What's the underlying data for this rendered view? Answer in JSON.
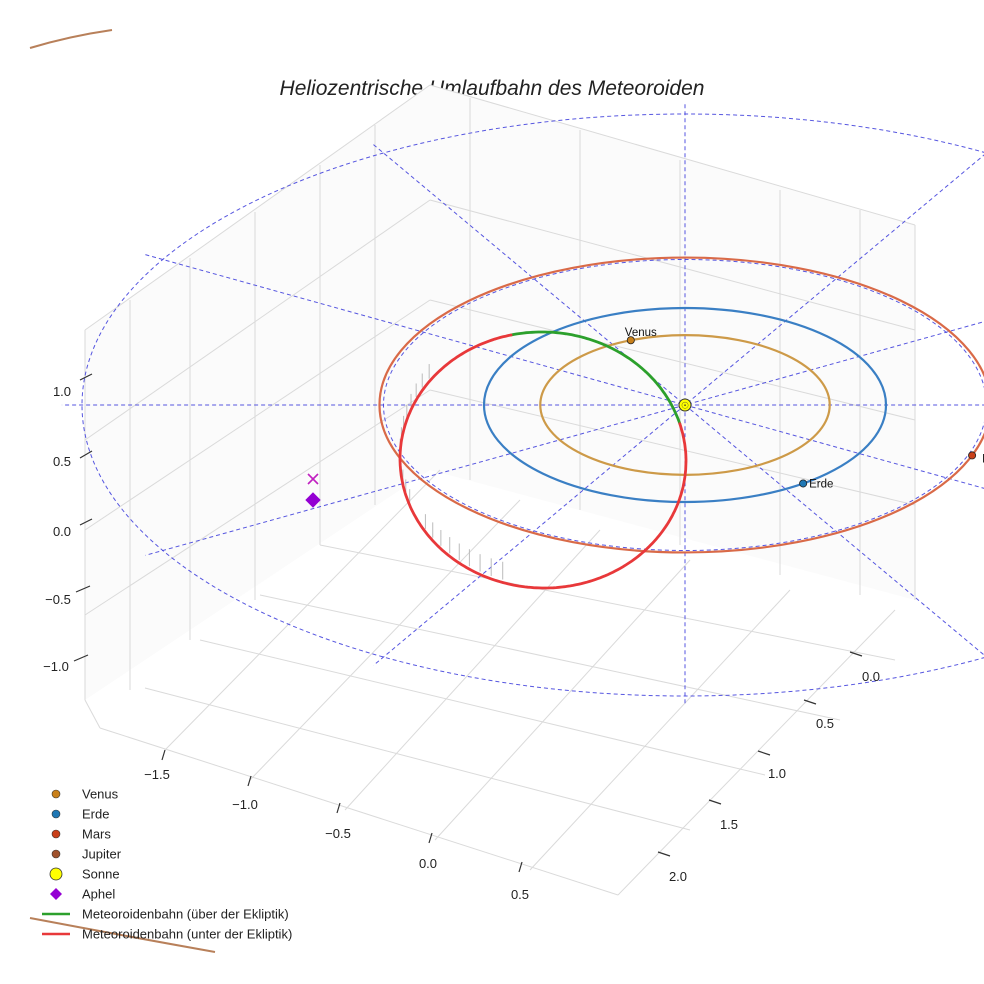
{
  "chart_data": {
    "type": "line",
    "projection": "3d",
    "title": "Heliozentrische Umlaufbahn des Meteoroiden",
    "xlabel": "",
    "ylabel": "",
    "zlabel": "",
    "grid": true,
    "legend_position": "lower-left",
    "axes": {
      "x": {
        "ticks": [
          "−1.5",
          "−1.0",
          "−0.5",
          "0.0",
          "0.5"
        ],
        "values": [
          -1.5,
          -1.0,
          -0.5,
          0.0,
          0.5
        ]
      },
      "y": {
        "ticks": [
          "0.0",
          "0.5",
          "1.0",
          "1.5",
          "2.0"
        ],
        "values": [
          0.0,
          0.5,
          1.0,
          1.5,
          2.0
        ]
      },
      "z": {
        "ticks": [
          "1.0",
          "0.5",
          "0.0",
          "−0.5",
          "−1.0"
        ],
        "values": [
          1.0,
          0.5,
          0.0,
          -0.5,
          -1.0
        ]
      }
    },
    "orbits": [
      {
        "name": "Venus",
        "radius_au": 0.72,
        "color": "#cd9a48"
      },
      {
        "name": "Erde",
        "radius_au": 1.0,
        "color": "#3a7fc4"
      },
      {
        "name": "Mars",
        "radius_au": 1.52,
        "color": "#d96a48"
      },
      {
        "name": "Jupiter",
        "radius_au": 5.2,
        "color": "#b8805a"
      }
    ],
    "bodies": [
      {
        "name": "Venus",
        "label": "Venus",
        "color": "#c9801a"
      },
      {
        "name": "Erde",
        "label": "Erde",
        "color": "#1f77b4"
      },
      {
        "name": "Mars",
        "label": "Mars",
        "color": "#c9401a"
      },
      {
        "name": "Sonne",
        "label": "",
        "color": "#ffff00"
      }
    ],
    "aphel": {
      "label": "Aphel",
      "color": "#9400d3",
      "marker": "diamond"
    },
    "series": [
      {
        "name": "Meteoroidenbahn (über der Ekliptik)",
        "color": "#2ca02c"
      },
      {
        "name": "Meteoroidenbahn (unter der Ekliptik)",
        "color": "#e8383a"
      }
    ],
    "legend": [
      {
        "label": "Venus",
        "kind": "dot",
        "color": "#c9801a"
      },
      {
        "label": "Erde",
        "kind": "dot",
        "color": "#1f77b4"
      },
      {
        "label": "Mars",
        "kind": "dot",
        "color": "#c9401a"
      },
      {
        "label": "Jupiter",
        "kind": "dot",
        "color": "#a0522d"
      },
      {
        "label": "Sonne",
        "kind": "sun",
        "color": "#ffff00"
      },
      {
        "label": "Aphel",
        "kind": "diamond",
        "color": "#9400d3"
      },
      {
        "label": "Meteoroidenbahn (über der Ekliptik)",
        "kind": "line",
        "color": "#2ca02c"
      },
      {
        "label": "Meteoroidenbahn (unter der Ekliptik)",
        "kind": "line",
        "color": "#e8383a"
      }
    ],
    "reference_grid_color": "#4444dd"
  }
}
